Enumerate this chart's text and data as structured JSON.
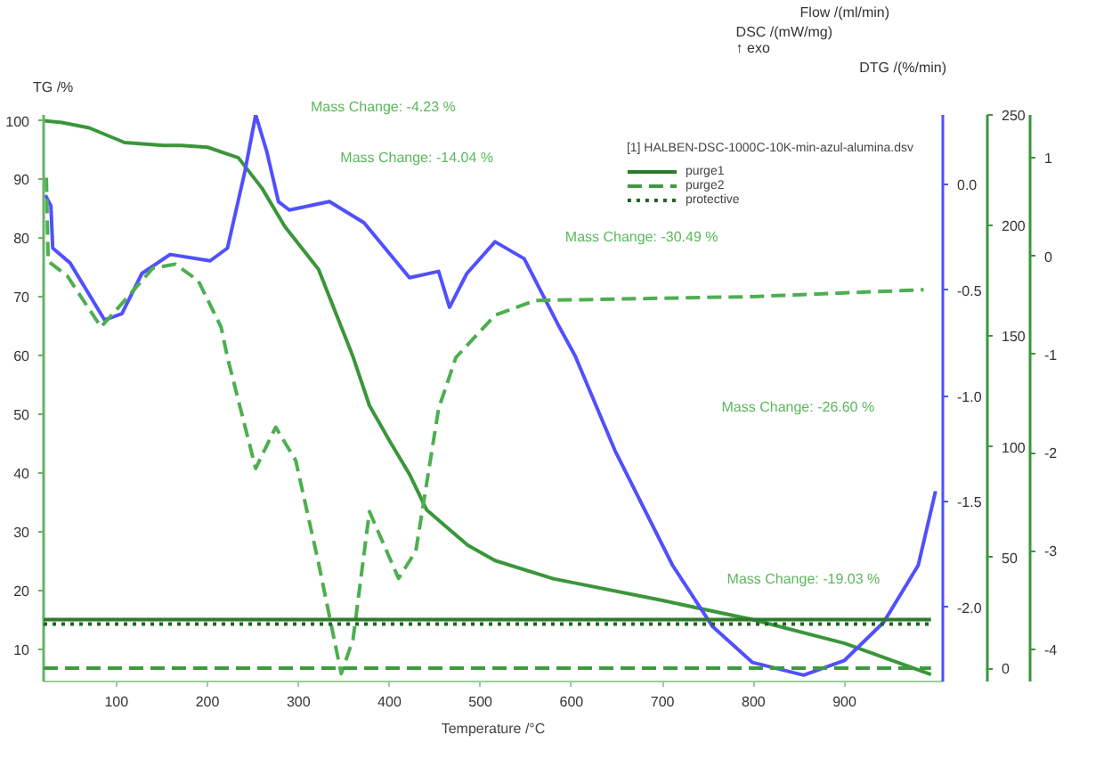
{
  "chart_data": [
    {
      "type": "line",
      "xlabel": "Temperature /°C",
      "ylabel": "TG /%",
      "y2label": "DSC /(mW/mg)\n↑ exo",
      "y3label": "DTG /(%/min)",
      "grid": false,
      "xlim": [
        20,
        1008
      ],
      "xticks": [
        100,
        200,
        300,
        400,
        500,
        600,
        700,
        800,
        900
      ],
      "ylim": [
        4.5,
        101
      ],
      "yticks": [
        10,
        20,
        30,
        40,
        50,
        60,
        70,
        80,
        90,
        100
      ],
      "y2lim": [
        -2.35,
        0.33
      ],
      "y2ticks": [
        {
          "value": 0,
          "label": "0.0"
        },
        {
          "value": -0.5,
          "label": "-0.5"
        },
        {
          "value": -1,
          "label": "-1.0"
        },
        {
          "value": -1.5,
          "label": "-1.5"
        },
        {
          "value": -2,
          "label": "-2.0"
        }
      ],
      "y3lim": [
        -4.33,
        1.44
      ],
      "y3ticks": [
        1,
        0,
        -1,
        -2,
        -3,
        -4
      ],
      "series": [
        {
          "color": "#3a963a",
          "line_style": "solid",
          "x": [
            20,
            40,
            70,
            109,
            152,
            171,
            200,
            234,
            260,
            285,
            322,
            360,
            378,
            400,
            422,
            441,
            486,
            516,
            580,
            700,
            800,
            900,
            995
          ],
          "values": [
            100,
            99.7,
            98.8,
            96.3,
            95.8,
            95.8,
            95.5,
            93.7,
            88.5,
            82,
            74.7,
            59.8,
            51.5,
            45.5,
            39.8,
            33.7,
            27.7,
            25.1,
            22,
            18.3,
            15,
            11,
            5.7
          ]
        },
        {
          "color": "#5050ff",
          "line_style": "solid",
          "axis": "y2",
          "x": [
            22,
            28,
            30,
            49,
            87,
            106,
            128,
            159,
            203,
            222,
            241,
            253,
            265,
            278,
            290,
            334,
            372,
            422,
            454,
            466,
            485,
            516,
            548,
            585,
            604,
            648,
            711,
            755,
            799,
            855,
            900,
            943,
            981,
            1000
          ],
          "values": [
            -0.05,
            -0.1,
            -0.3,
            -0.37,
            -0.64,
            -0.61,
            -0.42,
            -0.33,
            -0.36,
            -0.3,
            0.06,
            0.33,
            0.16,
            -0.08,
            -0.12,
            -0.08,
            -0.18,
            -0.44,
            -0.41,
            -0.58,
            -0.42,
            -0.27,
            -0.35,
            -0.66,
            -0.81,
            -1.26,
            -1.8,
            -2.09,
            -2.26,
            -2.32,
            -2.25,
            -2.07,
            -1.8,
            -1.45
          ]
        },
        {
          "color": "#4caf50",
          "line_style": "dashed",
          "axis": "y3",
          "x": [
            23,
            25,
            46,
            83,
            109,
            140,
            165,
            190,
            215,
            222,
            253,
            275,
            297,
            322,
            347,
            360,
            378,
            410,
            429,
            454,
            473,
            516,
            560,
            800,
            987
          ],
          "values": [
            0.8,
            -0.05,
            -0.2,
            -0.72,
            -0.45,
            -0.12,
            -0.08,
            -0.25,
            -0.72,
            -1.03,
            -2.16,
            -1.74,
            -2.08,
            -3.12,
            -4.25,
            -3.9,
            -2.6,
            -3.28,
            -3.0,
            -1.55,
            -1.03,
            -0.6,
            -0.45,
            -0.41,
            -0.34
          ]
        }
      ],
      "annotations": [
        "Mass Change: -4.23 %",
        "Mass Change: -14.04 %",
        "Mass Change: -30.49 %",
        "Mass Change: -26.60 %",
        "Mass Change: -19.03 %"
      ]
    },
    {
      "type": "line",
      "ylabel": "Flow /(ml/min)",
      "tick_labels": "y",
      "legend_title": "[1] HALBEN-DSC-1000C-10K-min-azul-alumina.dsv",
      "legend": "top right",
      "xlim": [
        20,
        1008
      ],
      "ylim": [
        -6,
        250
      ],
      "yticks": [
        0,
        50,
        100,
        150,
        200,
        250
      ],
      "series": [
        {
          "name": "purge1",
          "color": "#2d7a2d",
          "line_style": "solid",
          "x": [
            20,
            995
          ],
          "values": [
            22,
            22
          ]
        },
        {
          "name": "purge2",
          "color": "#3f9a3f",
          "line_style": "dashed",
          "x": [
            20,
            995
          ],
          "values": [
            0,
            0
          ]
        },
        {
          "name": "protective",
          "color": "#1e641e",
          "line_style": "dotted",
          "x": [
            20,
            995
          ],
          "values": [
            20,
            20
          ]
        }
      ]
    }
  ]
}
